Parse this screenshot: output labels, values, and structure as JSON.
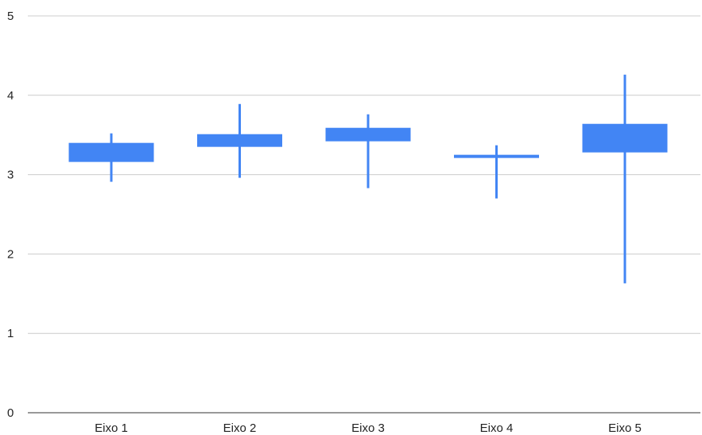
{
  "chart_data": {
    "type": "candlestick",
    "categories": [
      "Eixo 1",
      "Eixo 2",
      "Eixo 3",
      "Eixo 4",
      "Eixo 5"
    ],
    "series": [
      {
        "low": [
          2.91,
          2.96,
          2.83,
          2.7,
          1.63
        ],
        "open": [
          3.16,
          3.35,
          3.42,
          3.21,
          3.28
        ],
        "close": [
          3.4,
          3.51,
          3.59,
          3.25,
          3.64
        ],
        "high": [
          3.52,
          3.89,
          3.76,
          3.37,
          4.26
        ]
      }
    ],
    "ylim": [
      0,
      5
    ],
    "yticks": [
      0,
      1,
      2,
      3,
      4,
      5
    ],
    "grid": true,
    "title": "",
    "xlabel": "",
    "ylabel": "",
    "colors": {
      "candle": "#4285F4",
      "grid": "#cccccc",
      "baseline": "#333333",
      "text": "#222222"
    }
  }
}
